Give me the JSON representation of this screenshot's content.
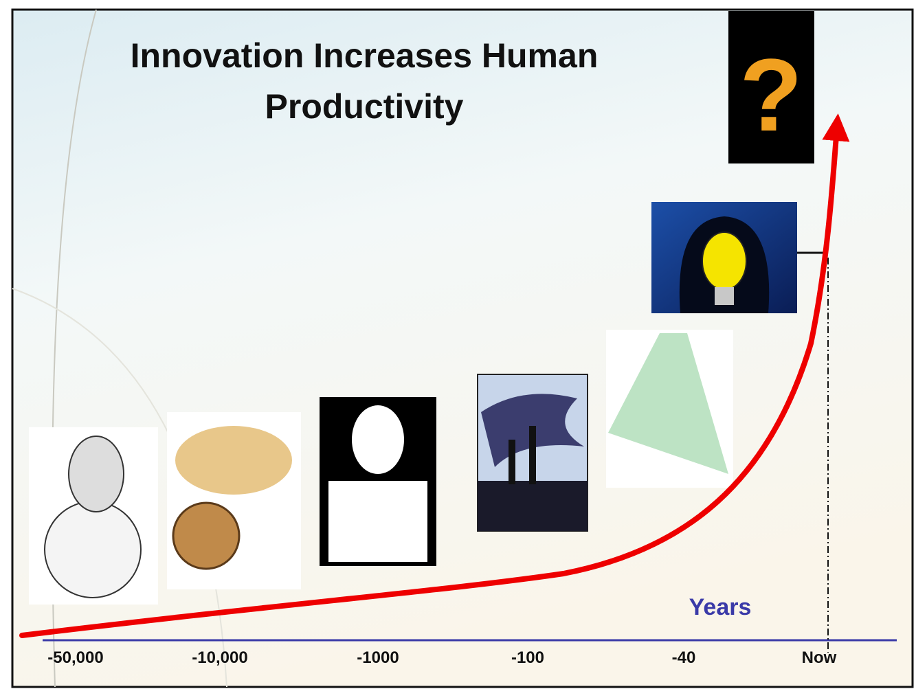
{
  "header": {
    "title_lines": [
      "Innovation Increases Human",
      "Productivity"
    ]
  },
  "icon": {
    "label": "?"
  },
  "axis": {
    "label": "Years",
    "ticks": [
      "-50,000",
      "-10,000",
      "-1000",
      "-100",
      "-40",
      "Now"
    ]
  }
}
